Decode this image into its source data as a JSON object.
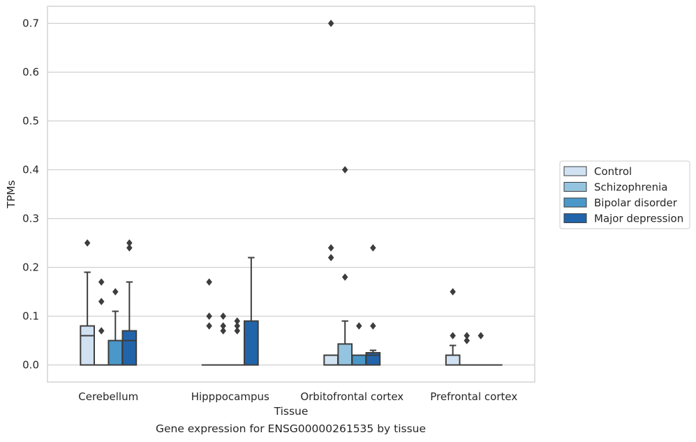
{
  "caption": "Gene expression for ENSG00000261535 by tissue",
  "chart_data": {
    "type": "box",
    "xlabel": "Tissue",
    "ylabel": "TPMs",
    "ylim": [
      -0.035,
      0.735
    ],
    "yticks": [
      0.0,
      0.1,
      0.2,
      0.3,
      0.4,
      0.5,
      0.6,
      0.7
    ],
    "ytick_labels": [
      "0.0",
      "0.1",
      "0.2",
      "0.3",
      "0.4",
      "0.5",
      "0.6",
      "0.7"
    ],
    "grid": "horizontal",
    "legend_placement": "right",
    "categories": [
      "Cerebellum",
      "Hipppocampus",
      "Orbitofrontal cortex",
      "Prefrontal cortex"
    ],
    "series": [
      {
        "name": "Control",
        "color": "#d0e1f2",
        "boxes": [
          {
            "category": "Cerebellum",
            "whisker_low": 0,
            "q1": 0,
            "median": 0.06,
            "q3": 0.08,
            "whisker_high": 0.19,
            "outliers": [
              0.25
            ]
          },
          {
            "category": "Hipppocampus",
            "whisker_low": 0,
            "q1": 0,
            "median": 0,
            "q3": 0,
            "whisker_high": 0,
            "outliers": [
              0.17,
              0.1,
              0.08
            ]
          },
          {
            "category": "Orbitofrontal cortex",
            "whisker_low": 0,
            "q1": 0,
            "median": 0,
            "q3": 0.02,
            "whisker_high": 0.02,
            "outliers": [
              0.7,
              0.24,
              0.22
            ]
          },
          {
            "category": "Prefrontal cortex",
            "whisker_low": 0,
            "q1": 0,
            "median": 0,
            "q3": 0.02,
            "whisker_high": 0.04,
            "outliers": [
              0.15,
              0.06
            ]
          }
        ]
      },
      {
        "name": "Schizophrenia",
        "color": "#94c4df",
        "boxes": [
          {
            "category": "Cerebellum",
            "whisker_low": 0,
            "q1": 0,
            "median": 0,
            "q3": 0,
            "whisker_high": 0,
            "outliers": [
              0.17,
              0.13,
              0.07
            ]
          },
          {
            "category": "Hipppocampus",
            "whisker_low": 0,
            "q1": 0,
            "median": 0,
            "q3": 0,
            "whisker_high": 0,
            "outliers": [
              0.1,
              0.08,
              0.07
            ]
          },
          {
            "category": "Orbitofrontal cortex",
            "whisker_low": 0,
            "q1": 0,
            "median": 0,
            "q3": 0.043,
            "whisker_high": 0.09,
            "outliers": [
              0.4,
              0.18
            ]
          },
          {
            "category": "Prefrontal cortex",
            "whisker_low": 0,
            "q1": 0,
            "median": 0,
            "q3": 0,
            "whisker_high": 0,
            "outliers": [
              0.06,
              0.05
            ]
          }
        ]
      },
      {
        "name": "Bipolar disorder",
        "color": "#4a98c9",
        "boxes": [
          {
            "category": "Cerebellum",
            "whisker_low": 0,
            "q1": 0,
            "median": 0,
            "q3": 0.05,
            "whisker_high": 0.11,
            "outliers": [
              0.15
            ]
          },
          {
            "category": "Hipppocampus",
            "whisker_low": 0,
            "q1": 0,
            "median": 0,
            "q3": 0,
            "whisker_high": 0,
            "outliers": [
              0.09,
              0.08,
              0.07
            ]
          },
          {
            "category": "Orbitofrontal cortex",
            "whisker_low": 0,
            "q1": 0,
            "median": 0,
            "q3": 0.02,
            "whisker_high": 0.02,
            "outliers": [
              0.08
            ]
          },
          {
            "category": "Prefrontal cortex",
            "whisker_low": 0,
            "q1": 0,
            "median": 0,
            "q3": 0,
            "whisker_high": 0,
            "outliers": [
              0.06
            ]
          }
        ]
      },
      {
        "name": "Major depression",
        "color": "#2264aa",
        "boxes": [
          {
            "category": "Cerebellum",
            "whisker_low": 0,
            "q1": 0,
            "median": 0.05,
            "q3": 0.07,
            "whisker_high": 0.17,
            "outliers": [
              0.25,
              0.24
            ]
          },
          {
            "category": "Hipppocampus",
            "whisker_low": 0,
            "q1": 0,
            "median": 0,
            "q3": 0.09,
            "whisker_high": 0.22,
            "outliers": []
          },
          {
            "category": "Orbitofrontal cortex",
            "whisker_low": 0,
            "q1": 0,
            "median": 0.02,
            "q3": 0.025,
            "whisker_high": 0.03,
            "outliers": [
              0.24,
              0.08
            ]
          },
          {
            "category": "Prefrontal cortex",
            "whisker_low": 0,
            "q1": 0,
            "median": 0,
            "q3": 0,
            "whisker_high": 0,
            "outliers": []
          }
        ]
      }
    ]
  }
}
